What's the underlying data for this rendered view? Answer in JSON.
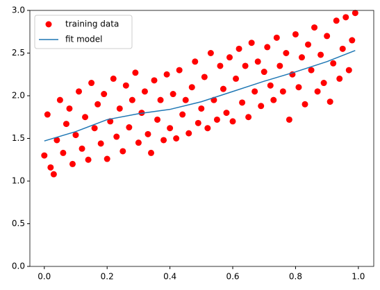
{
  "chart_data": {
    "type": "scatter",
    "legend": "upper left",
    "xlim": [
      -0.046,
      1.049
    ],
    "ylim": [
      0,
      3
    ],
    "xticks": [
      {
        "value": 0,
        "label": "0.0"
      },
      0.2,
      0.4,
      0.6,
      0.8,
      {
        "value": 1,
        "label": "1.0"
      }
    ],
    "yticks": [
      {
        "value": 0,
        "label": "0.0"
      },
      0.5,
      {
        "value": 1,
        "label": "1.0"
      },
      1.5,
      {
        "value": 2,
        "label": "2.0"
      },
      2.5,
      {
        "value": 3,
        "label": "3.0"
      }
    ],
    "series": [
      {
        "name": "training data",
        "type": "scatter",
        "color": "#ff0000",
        "x": [
          0.0,
          0.01,
          0.02,
          0.03,
          0.04,
          0.05,
          0.06,
          0.07,
          0.08,
          0.09,
          0.1,
          0.11,
          0.12,
          0.13,
          0.14,
          0.15,
          0.16,
          0.17,
          0.18,
          0.19,
          0.2,
          0.21,
          0.22,
          0.23,
          0.24,
          0.25,
          0.26,
          0.27,
          0.28,
          0.29,
          0.3,
          0.31,
          0.32,
          0.33,
          0.34,
          0.35,
          0.36,
          0.37,
          0.38,
          0.39,
          0.4,
          0.41,
          0.42,
          0.43,
          0.44,
          0.45,
          0.46,
          0.47,
          0.48,
          0.49,
          0.5,
          0.51,
          0.52,
          0.53,
          0.54,
          0.55,
          0.56,
          0.57,
          0.58,
          0.59,
          0.6,
          0.61,
          0.62,
          0.63,
          0.64,
          0.65,
          0.66,
          0.67,
          0.68,
          0.69,
          0.7,
          0.71,
          0.72,
          0.73,
          0.74,
          0.75,
          0.76,
          0.77,
          0.78,
          0.79,
          0.8,
          0.81,
          0.82,
          0.83,
          0.84,
          0.85,
          0.86,
          0.87,
          0.88,
          0.89,
          0.9,
          0.91,
          0.92,
          0.93,
          0.94,
          0.95,
          0.96,
          0.97,
          0.98,
          0.99
        ],
        "values": [
          1.3,
          1.78,
          1.16,
          1.08,
          1.48,
          1.95,
          1.33,
          1.67,
          1.85,
          1.2,
          1.54,
          2.05,
          1.38,
          1.75,
          1.25,
          2.15,
          1.62,
          1.9,
          1.44,
          2.02,
          1.26,
          1.7,
          2.2,
          1.52,
          1.85,
          1.35,
          2.12,
          1.63,
          1.95,
          2.27,
          1.45,
          1.8,
          2.05,
          1.55,
          1.33,
          2.18,
          1.72,
          1.95,
          1.48,
          2.25,
          1.62,
          2.02,
          1.5,
          2.3,
          1.78,
          1.95,
          1.56,
          2.1,
          2.4,
          1.68,
          1.85,
          2.22,
          1.62,
          2.5,
          1.95,
          1.72,
          2.35,
          2.08,
          1.8,
          2.45,
          1.7,
          2.2,
          2.55,
          1.92,
          2.35,
          1.75,
          2.62,
          2.05,
          2.4,
          1.88,
          2.28,
          2.57,
          2.12,
          1.95,
          2.68,
          2.35,
          2.05,
          2.5,
          1.72,
          2.25,
          2.72,
          2.1,
          2.45,
          1.9,
          2.6,
          2.3,
          2.8,
          2.05,
          2.48,
          2.15,
          2.7,
          1.93,
          2.38,
          2.88,
          2.2,
          2.55,
          2.92,
          2.3,
          2.65,
          2.97
        ]
      },
      {
        "name": "fit model",
        "type": "line",
        "color": "#1f77b4",
        "x": [
          0,
          0.1,
          0.2,
          0.3,
          0.4,
          0.5,
          0.6,
          0.7,
          0.8,
          0.9,
          0.99
        ],
        "values": [
          1.47,
          1.58,
          1.72,
          1.79,
          1.84,
          1.93,
          2.05,
          2.17,
          2.28,
          2.4,
          2.53
        ]
      }
    ]
  }
}
